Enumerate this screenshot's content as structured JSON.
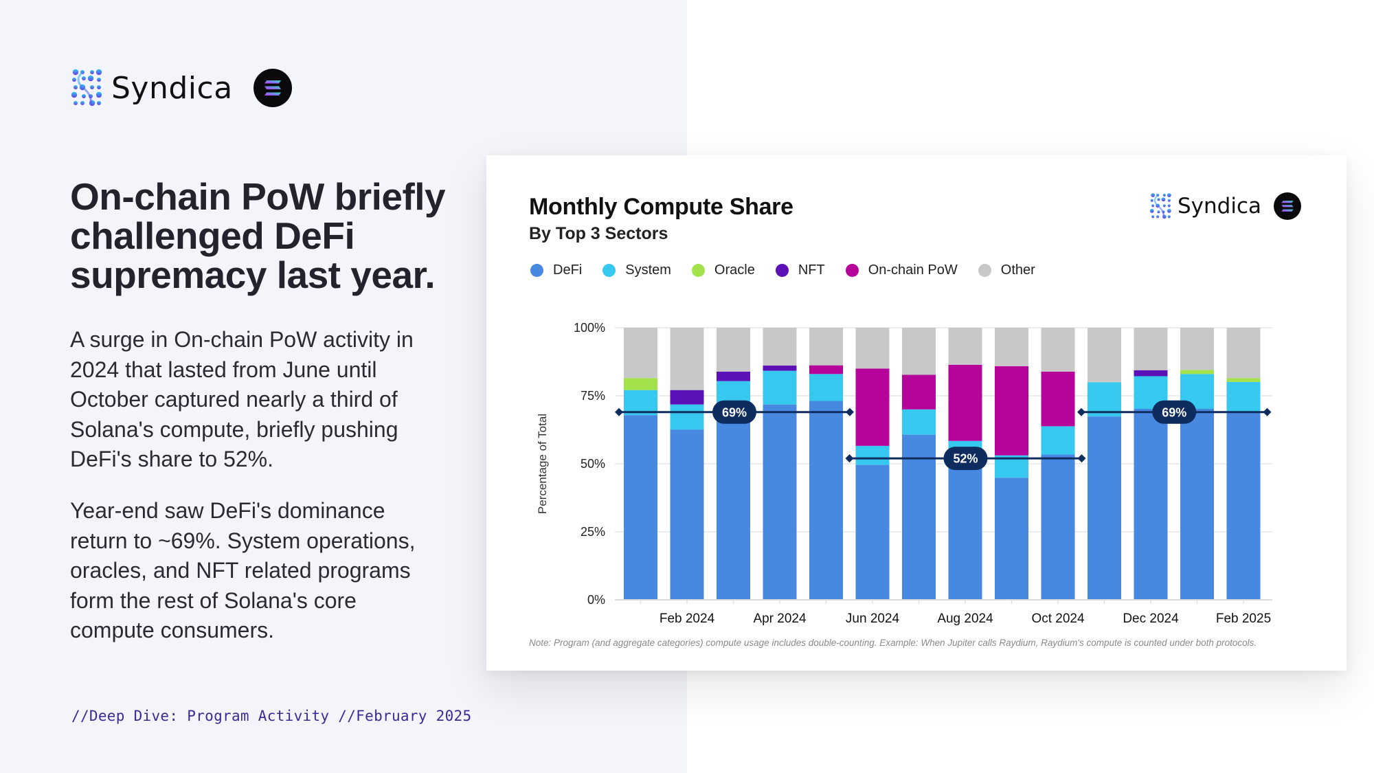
{
  "brand": {
    "name": "Syndica",
    "partner_icon": "solana-icon"
  },
  "left": {
    "headline": "On-chain PoW briefly challenged DeFi supremacy last year.",
    "paragraph1": "A surge in On-chain PoW activity in 2024 that lasted from June until October captured nearly a third of Solana's compute, briefly pushing DeFi's share to 52%.",
    "paragraph2": "Year-end saw DeFi's dominance return to ~69%. System operations, oracles, and NFT related programs form the rest of Solana's core compute consumers.",
    "footer": "//Deep Dive: Program Activity //February 2025"
  },
  "card": {
    "brand_name": "Syndica",
    "note": "Note: Program (and aggregate categories) compute usage includes double-counting. Example: When Jupiter calls Raydium, Raydium's compute is counted under both protocols."
  },
  "colors": {
    "DeFi": "#4789e0",
    "System": "#36c8ee",
    "Oracle": "#a4e24b",
    "NFT": "#5b10b8",
    "On-chain PoW": "#b6049a",
    "Other": "#c8c8c8",
    "reference_line": "#0e2c5e"
  },
  "chart_data": {
    "type": "bar",
    "stacked": true,
    "title": "Monthly Compute Share",
    "subtitle": "By Top 3 Sectors",
    "xlabel": "",
    "ylabel": "Percentage of Total",
    "ylim": [
      0,
      100
    ],
    "yticks": [
      "0%",
      "25%",
      "50%",
      "75%",
      "100%"
    ],
    "ytick_values": [
      0,
      25,
      50,
      75,
      100
    ],
    "grid": true,
    "legend_position": "top-left",
    "categories": [
      "Jan 2024",
      "Feb 2024",
      "Mar 2024",
      "Apr 2024",
      "May 2024",
      "Jun 2024",
      "Jul 2024",
      "Aug 2024",
      "Sep 2024",
      "Oct 2024",
      "Nov 2024",
      "Dec 2024",
      "Jan 2025",
      "Feb 2025"
    ],
    "xtick_labels": [
      "",
      "Feb 2024",
      "",
      "Apr 2024",
      "",
      "Jun 2024",
      "",
      "Aug 2024",
      "",
      "Oct 2024",
      "",
      "Dec 2024",
      "",
      "Feb 2025"
    ],
    "series": [
      {
        "name": "DeFi",
        "values": [
          67.9,
          62.6,
          68.5,
          71.8,
          73.1,
          49.6,
          60.7,
          50.0,
          44.9,
          53.4,
          67.4,
          70.2,
          70.2,
          69.0
        ]
      },
      {
        "name": "System",
        "values": [
          9.2,
          9.2,
          11.9,
          12.4,
          9.9,
          7.0,
          9.3,
          8.4,
          8.2,
          10.4,
          12.6,
          12.0,
          12.8,
          11.1
        ]
      },
      {
        "name": "Oracle",
        "values": [
          4.4,
          0,
          0,
          0,
          0,
          0,
          0,
          0,
          0,
          0,
          0,
          0,
          1.5,
          1.4
        ]
      },
      {
        "name": "NFT",
        "values": [
          0,
          5.3,
          3.5,
          1.9,
          0,
          0,
          0,
          0,
          0,
          0,
          0,
          2.2,
          0,
          0
        ]
      },
      {
        "name": "On-chain PoW",
        "values": [
          0,
          0,
          0,
          0,
          3.2,
          28.4,
          12.7,
          28.0,
          32.8,
          20.1,
          0,
          0,
          0,
          0
        ]
      },
      {
        "name": "Other",
        "values": [
          18.5,
          22.9,
          16.1,
          13.9,
          13.8,
          15.0,
          17.3,
          13.6,
          14.1,
          16.1,
          20.0,
          15.6,
          15.5,
          18.5
        ]
      }
    ],
    "reference_lines": [
      {
        "label": "69%",
        "value": 69,
        "from": "Jan 2024",
        "to": "May 2024"
      },
      {
        "label": "52%",
        "value": 52,
        "from": "Jun 2024",
        "to": "Oct 2024"
      },
      {
        "label": "69%",
        "value": 69,
        "from": "Nov 2024",
        "to": "Feb 2025"
      }
    ],
    "note": "Note: Program (and aggregate categories) compute usage includes double-counting. Example: When Jupiter calls Raydium, Raydium's compute is counted under both protocols."
  }
}
